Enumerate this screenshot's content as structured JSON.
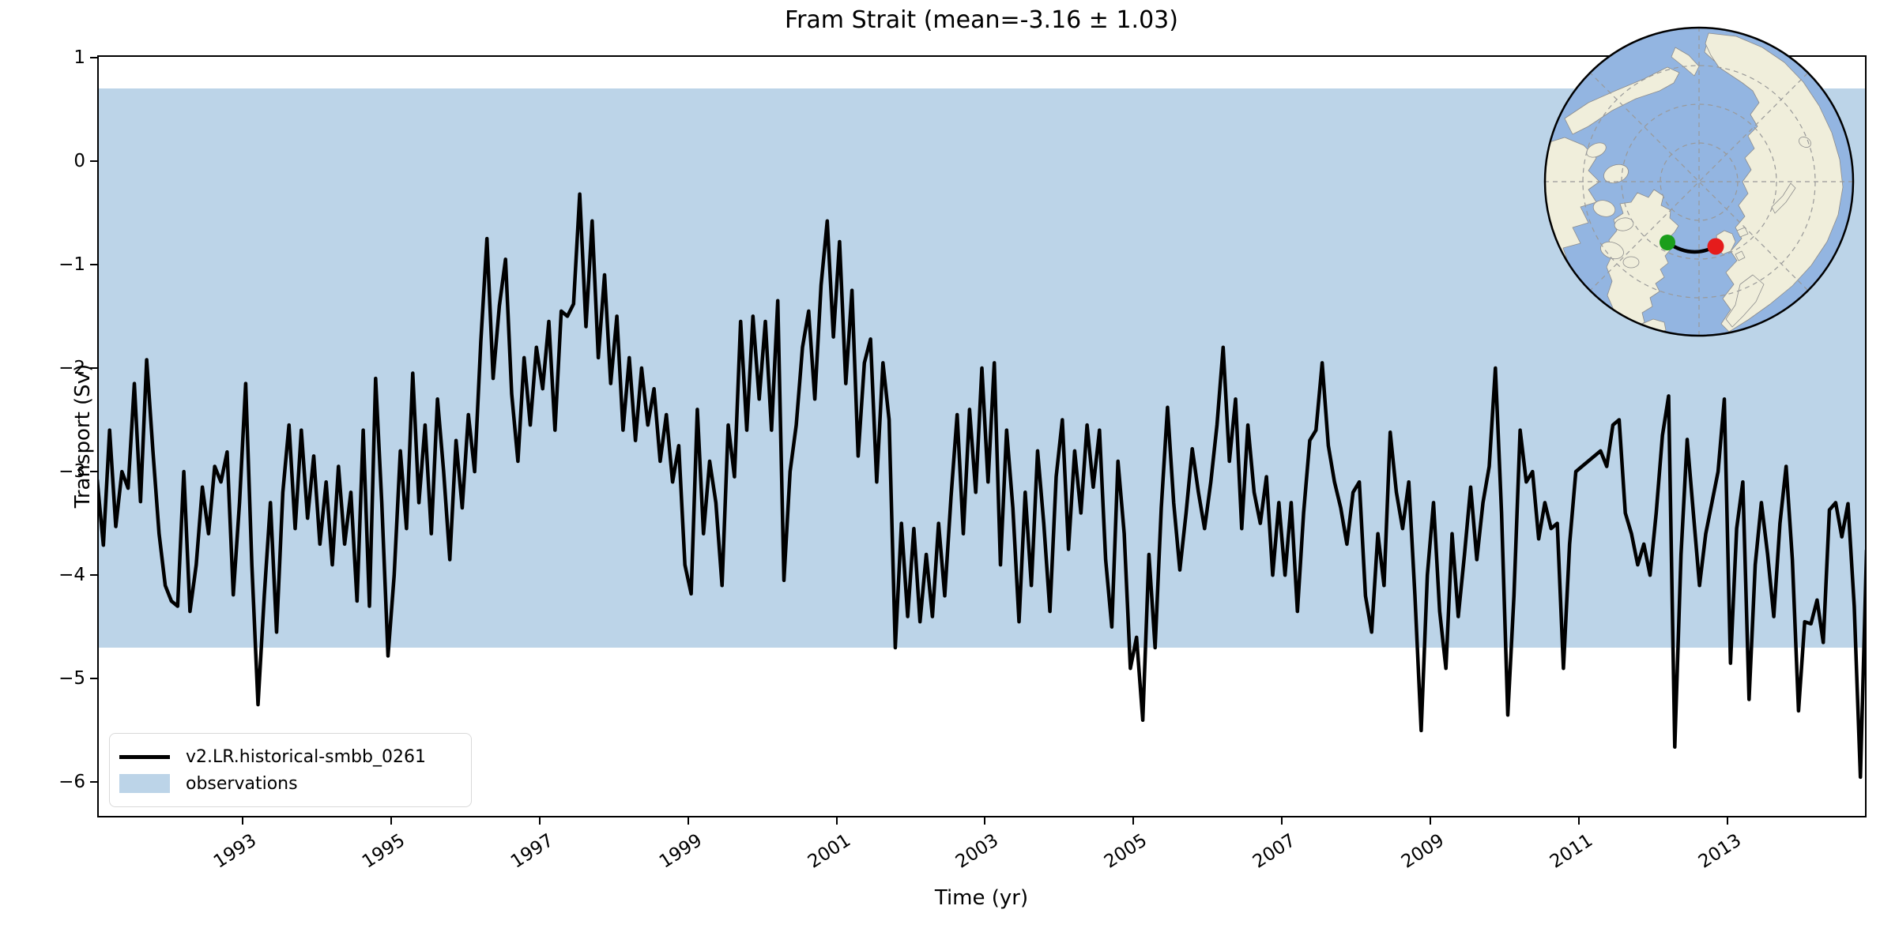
{
  "title": "Fram Strait (mean=-3.16 ± 1.03)",
  "axes": {
    "xlabel": "Time (yr)",
    "ylabel": "Transport (Sv)",
    "x_ticks": [
      {
        "value": 1993,
        "label": "1993"
      },
      {
        "value": 1995,
        "label": "1995"
      },
      {
        "value": 1997,
        "label": "1997"
      },
      {
        "value": 1999,
        "label": "1999"
      },
      {
        "value": 2001,
        "label": "2001"
      },
      {
        "value": 2003,
        "label": "2003"
      },
      {
        "value": 2005,
        "label": "2005"
      },
      {
        "value": 2007,
        "label": "2007"
      },
      {
        "value": 2009,
        "label": "2009"
      },
      {
        "value": 2011,
        "label": "2011"
      },
      {
        "value": 2013,
        "label": "2013"
      }
    ],
    "y_ticks": [
      {
        "value": 1,
        "label": "1"
      },
      {
        "value": 0,
        "label": "0"
      },
      {
        "value": -1,
        "label": "−1"
      },
      {
        "value": -2,
        "label": "−2"
      },
      {
        "value": -3,
        "label": "−3"
      },
      {
        "value": -4,
        "label": "−4"
      },
      {
        "value": -5,
        "label": "−5"
      },
      {
        "value": -6,
        "label": "−6"
      }
    ]
  },
  "legend": {
    "entries": [
      {
        "label": "v2.LR.historical-smbb_0261",
        "swatch": "line",
        "color": "#000000"
      },
      {
        "label": "observations",
        "swatch": "patch",
        "color": "#bcd4e8"
      }
    ]
  },
  "colors": {
    "series_line": "#000000",
    "observations_band": "#bcd4e8",
    "map_ocean": "#93b5e1",
    "map_land": "#f0eedb",
    "map_coast": "#8c8c8c",
    "map_graticule": "#999999",
    "transect_start_marker": "#1b9e1b",
    "transect_end_marker": "#e51c1c",
    "transect_line": "#000000"
  },
  "inset_map": {
    "description": "North polar stereographic map with Fram Strait transect",
    "start_marker": "green-dot",
    "end_marker": "red-dot"
  },
  "chart_data": {
    "type": "line",
    "title": "Fram Strait (mean=-3.16 ± 1.03)",
    "xlabel": "Time (yr)",
    "ylabel": "Transport (Sv)",
    "xlim": [
      1991.042,
      2014.875
    ],
    "ylim": [
      -6.34,
      1.02
    ],
    "grid": false,
    "legend_position": "lower left",
    "x_start": 1991.042,
    "x_step": 0.083333,
    "mean": -3.16,
    "std": 1.03,
    "observations_band": {
      "top": 0.7,
      "bottom": -4.7,
      "label": "observations"
    },
    "series": [
      {
        "name": "v2.LR.historical-smbb_0261",
        "units": "Sv",
        "sampling": "monthly 1991-01 to 2014-11",
        "values": [
          -3.08,
          -3.71,
          -2.6,
          -3.53,
          -3.0,
          -3.16,
          -2.15,
          -3.29,
          -1.92,
          -2.8,
          -3.6,
          -4.1,
          -4.25,
          -4.3,
          -3.0,
          -4.35,
          -3.9,
          -3.15,
          -3.6,
          -2.95,
          -3.1,
          -2.81,
          -4.19,
          -3.3,
          -2.15,
          -3.9,
          -5.25,
          -4.2,
          -3.3,
          -4.55,
          -3.2,
          -2.55,
          -3.55,
          -2.6,
          -3.45,
          -2.85,
          -3.7,
          -3.1,
          -3.9,
          -2.95,
          -3.7,
          -3.2,
          -4.25,
          -2.6,
          -4.3,
          -2.1,
          -3.3,
          -4.78,
          -4.0,
          -2.8,
          -3.55,
          -2.05,
          -3.3,
          -2.55,
          -3.6,
          -2.3,
          -3.0,
          -3.85,
          -2.7,
          -3.35,
          -2.45,
          -3.0,
          -1.75,
          -0.75,
          -2.1,
          -1.4,
          -0.95,
          -2.25,
          -2.9,
          -1.9,
          -2.55,
          -1.8,
          -2.2,
          -1.55,
          -2.6,
          -1.45,
          -1.5,
          -1.38,
          -0.32,
          -1.6,
          -0.58,
          -1.9,
          -1.1,
          -2.15,
          -1.5,
          -2.6,
          -1.9,
          -2.7,
          -2.0,
          -2.55,
          -2.2,
          -2.9,
          -2.45,
          -3.1,
          -2.75,
          -3.9,
          -4.18,
          -2.4,
          -3.6,
          -2.9,
          -3.3,
          -4.1,
          -2.55,
          -3.05,
          -1.55,
          -2.6,
          -1.5,
          -2.3,
          -1.55,
          -2.6,
          -1.35,
          -4.05,
          -3.0,
          -2.55,
          -1.8,
          -1.45,
          -2.3,
          -1.2,
          -0.58,
          -1.7,
          -0.78,
          -2.15,
          -1.25,
          -2.85,
          -1.95,
          -1.72,
          -3.1,
          -1.95,
          -2.5,
          -4.7,
          -3.5,
          -4.4,
          -3.55,
          -4.45,
          -3.8,
          -4.4,
          -3.5,
          -4.2,
          -3.25,
          -2.45,
          -3.6,
          -2.4,
          -3.2,
          -2.0,
          -3.1,
          -1.95,
          -3.9,
          -2.6,
          -3.35,
          -4.45,
          -3.2,
          -4.1,
          -2.8,
          -3.5,
          -4.35,
          -3.05,
          -2.5,
          -3.75,
          -2.8,
          -3.4,
          -2.55,
          -3.15,
          -2.6,
          -3.85,
          -4.5,
          -2.9,
          -3.6,
          -4.9,
          -4.6,
          -5.4,
          -3.8,
          -4.7,
          -3.35,
          -2.38,
          -3.3,
          -3.95,
          -3.4,
          -2.78,
          -3.2,
          -3.55,
          -3.1,
          -2.55,
          -1.8,
          -2.9,
          -2.3,
          -3.55,
          -2.55,
          -3.2,
          -3.5,
          -3.05,
          -4.0,
          -3.3,
          -4.0,
          -3.3,
          -4.35,
          -3.4,
          -2.7,
          -2.6,
          -1.95,
          -2.75,
          -3.1,
          -3.35,
          -3.7,
          -3.2,
          -3.1,
          -4.2,
          -4.55,
          -3.6,
          -4.1,
          -2.62,
          -3.2,
          -3.55,
          -3.1,
          -4.2,
          -5.5,
          -4.0,
          -3.3,
          -4.35,
          -4.9,
          -3.6,
          -4.4,
          -3.8,
          -3.15,
          -3.85,
          -3.3,
          -2.95,
          -2.0,
          -3.4,
          -5.35,
          -4.2,
          -2.6,
          -3.1,
          -3.0,
          -3.65,
          -3.3,
          -3.55,
          -3.5,
          -4.9,
          -3.7,
          -3.0,
          -2.95,
          -2.9,
          -2.85,
          -2.8,
          -2.95,
          -2.55,
          -2.5,
          -3.4,
          -3.6,
          -3.9,
          -3.7,
          -4.0,
          -3.4,
          -2.65,
          -2.27,
          -5.66,
          -3.8,
          -2.69,
          -3.4,
          -4.1,
          -3.6,
          -3.3,
          -3.0,
          -2.3,
          -4.85,
          -3.55,
          -3.1,
          -5.2,
          -3.9,
          -3.3,
          -3.8,
          -4.4,
          -3.5,
          -2.95,
          -3.85,
          -5.31,
          -4.45,
          -4.47,
          -4.24,
          -4.65,
          -3.37,
          -3.3,
          -3.63,
          -3.31,
          -4.3,
          -5.95,
          -3.76
        ]
      }
    ]
  }
}
